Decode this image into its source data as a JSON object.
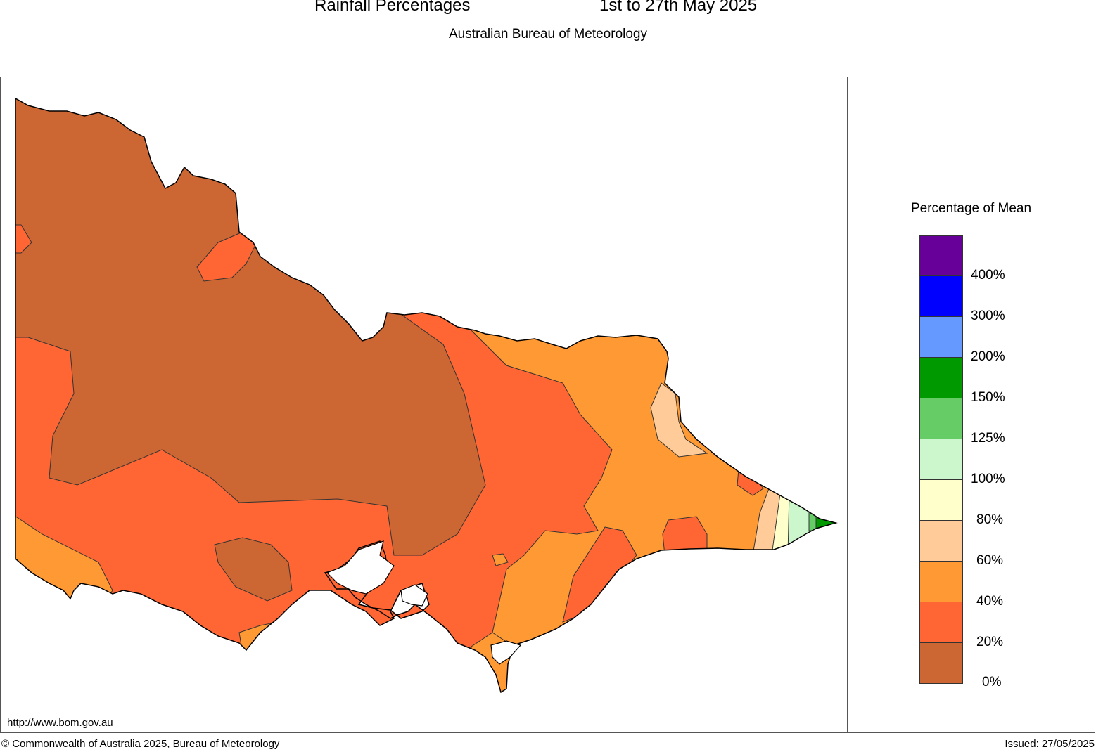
{
  "header": {
    "title": "Rainfall Percentages",
    "period": "1st to 27th May 2025",
    "subtitle": "Australian Bureau of Meteorology"
  },
  "legend": {
    "title": "Percentage of Mean",
    "colors": [
      "#660099",
      "#0000ff",
      "#6699ff",
      "#009900",
      "#66cc66",
      "#ccf7cc",
      "#ffffcc",
      "#ffcc99",
      "#ff9933",
      "#ff6633",
      "#cc6633"
    ],
    "tick_labels": [
      "400%",
      "300%",
      "200%",
      "150%",
      "125%",
      "100%",
      "80%",
      "60%",
      "40%",
      "20%",
      "0%"
    ]
  },
  "map": {
    "region_colors": {
      "pct_0_20": "#cc6633",
      "pct_20_40": "#ff6633",
      "pct_40_60": "#ff9933",
      "pct_60_80": "#ffcc99",
      "pct_80_100": "#ffffcc",
      "pct_100_125": "#ccf7cc",
      "pct_125_150": "#66cc66",
      "pct_150_200": "#009900"
    }
  },
  "footer": {
    "url": "http://www.bom.gov.au",
    "copyright": "© Commonwealth of Australia 2025, Bureau of Meteorology",
    "issued": "Issued: 27/05/2025"
  }
}
